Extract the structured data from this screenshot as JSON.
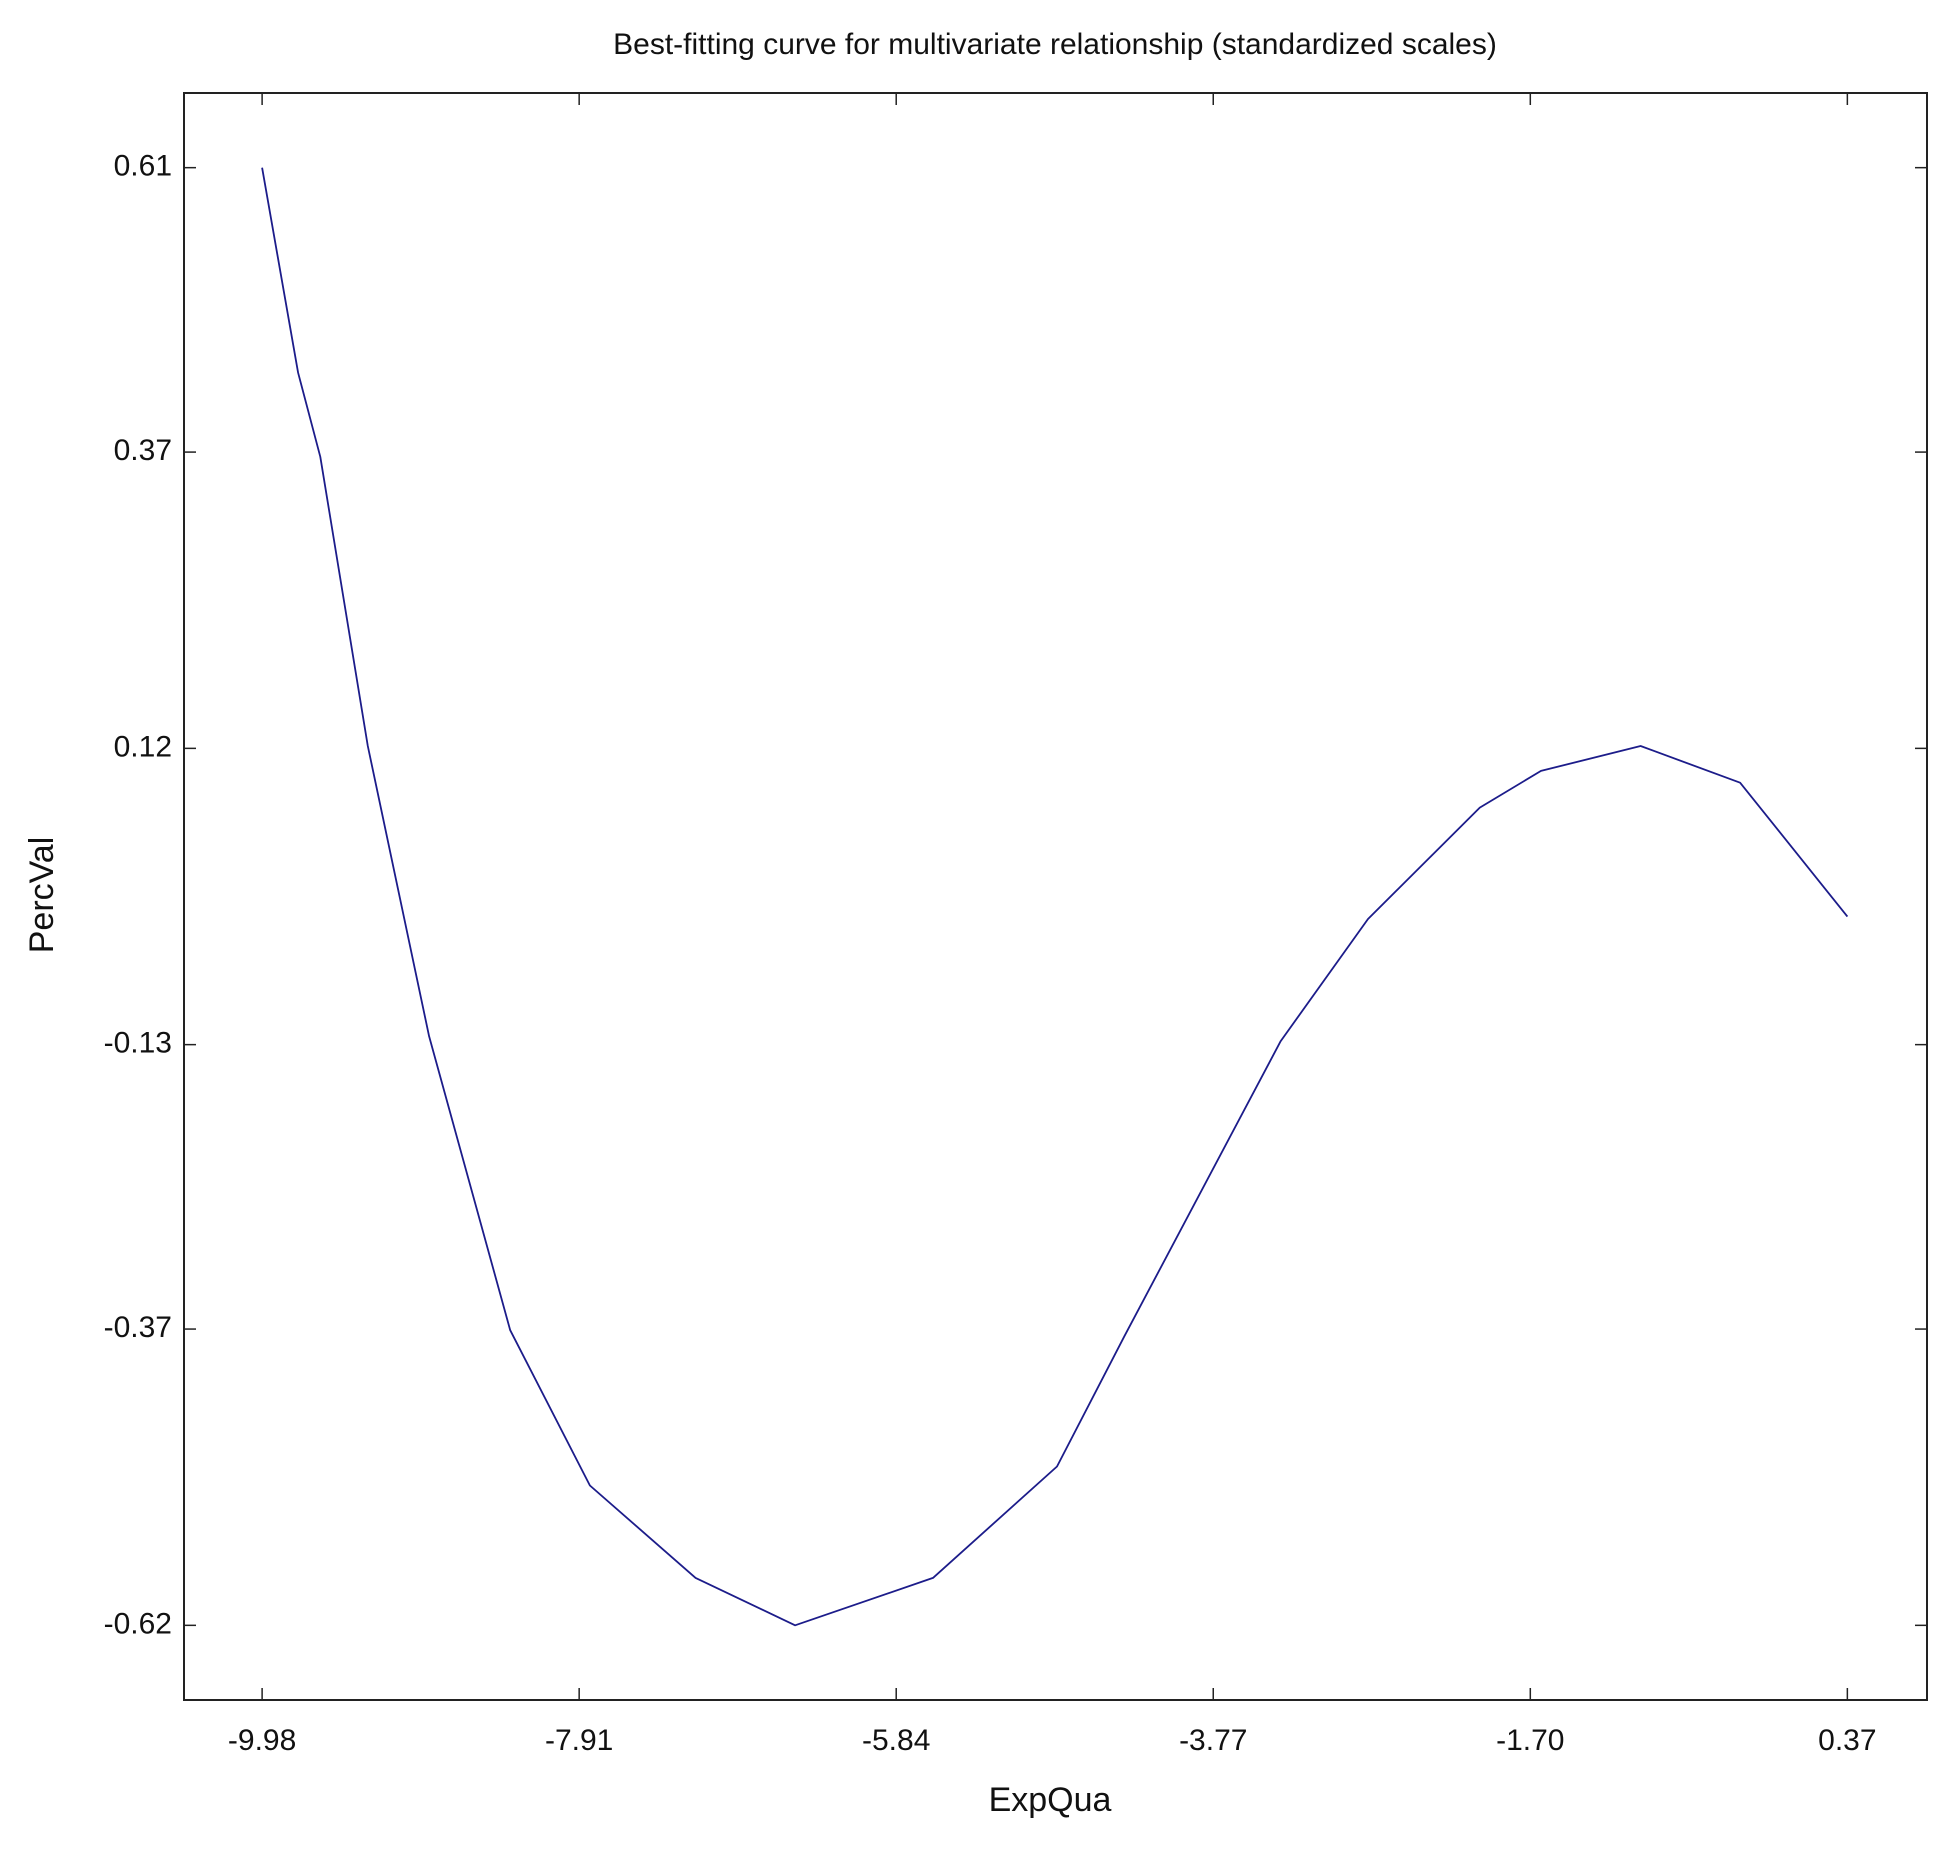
{
  "chart_data": {
    "type": "line",
    "title": "Best-fitting curve for multivariate relationship (standardized scales)",
    "x_label": "ExpQua",
    "y_label": "PercVal",
    "series": [
      {
        "color": "#1c1c8a",
        "x": [
          -9.98,
          -9.745,
          -9.6,
          -9.29,
          -8.89,
          -8.36,
          -7.84,
          -7.15,
          -6.5,
          -5.6,
          -4.79,
          -4.35,
          -3.33,
          -2.76,
          -2.03,
          -1.63,
          -0.98,
          -0.33,
          0.37
        ],
        "values": [
          0.61,
          0.437,
          0.366,
          0.122,
          -0.123,
          -0.371,
          -0.502,
          -0.58,
          -0.62,
          -0.58,
          -0.486,
          -0.376,
          -0.127,
          -0.024,
          0.07,
          0.101,
          0.122,
          0.091,
          -0.022
        ]
      }
    ],
    "xlim": [
      -10.49,
      0.89
    ],
    "ylim": [
      -0.683,
      0.673
    ],
    "xticks": [
      -9.98,
      -7.91,
      -5.84,
      -3.77,
      {
        "value": -1.7,
        "label": "-1.70"
      },
      0.37
    ],
    "yticks": [
      -0.62,
      -0.37,
      -0.13,
      0.12,
      0.37,
      0.61
    ],
    "grid": false
  }
}
